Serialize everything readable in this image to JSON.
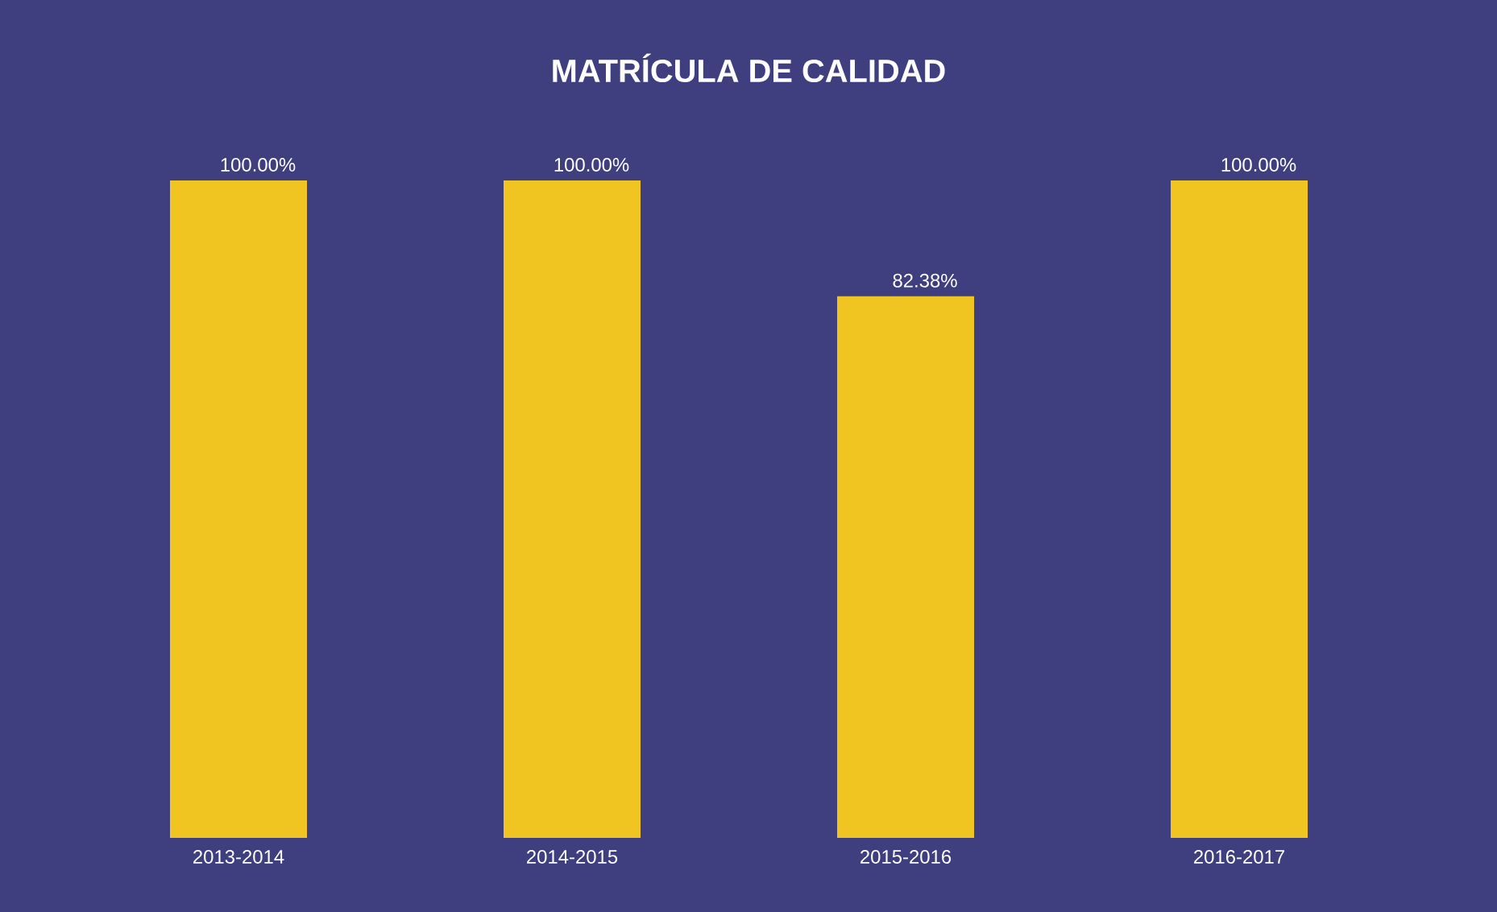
{
  "chart_data": {
    "type": "bar",
    "title": "MATRÍCULA DE CALIDAD",
    "categories": [
      "2013-2014",
      "2014-2015",
      "2015-2016",
      "2016-2017"
    ],
    "values": [
      100,
      100,
      82.38,
      100
    ],
    "value_labels": [
      "100.00%",
      "100.00%",
      "82.38%",
      "100.00%"
    ],
    "color": "#f0c522"
  }
}
